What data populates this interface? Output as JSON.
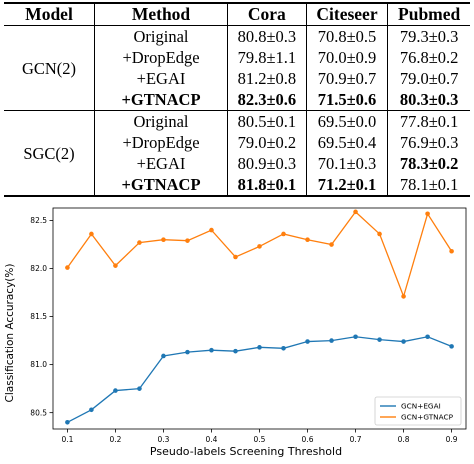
{
  "table": {
    "headers": [
      "Model",
      "Method",
      "Cora",
      "Citeseer",
      "Pubmed"
    ],
    "groups": [
      {
        "model": "GCN(2)",
        "rows": [
          {
            "method": "Original",
            "method_bold": false,
            "cells": [
              {
                "v": "80.8±0.3",
                "b": false
              },
              {
                "v": "70.8±0.5",
                "b": false
              },
              {
                "v": "79.3±0.3",
                "b": false
              }
            ]
          },
          {
            "method": "+DropEdge",
            "method_bold": false,
            "cells": [
              {
                "v": "79.8±1.1",
                "b": false
              },
              {
                "v": "70.0±0.9",
                "b": false
              },
              {
                "v": "76.8±0.2",
                "b": false
              }
            ]
          },
          {
            "method": "+EGAI",
            "method_bold": false,
            "cells": [
              {
                "v": "81.2±0.8",
                "b": false
              },
              {
                "v": "70.9±0.7",
                "b": false
              },
              {
                "v": "79.0±0.7",
                "b": false
              }
            ]
          },
          {
            "method": "+GTNACP",
            "method_bold": true,
            "cells": [
              {
                "v": "82.3±0.6",
                "b": true
              },
              {
                "v": "71.5±0.6",
                "b": true
              },
              {
                "v": "80.3±0.3",
                "b": true
              }
            ]
          }
        ]
      },
      {
        "model": "SGC(2)",
        "rows": [
          {
            "method": "Original",
            "method_bold": false,
            "cells": [
              {
                "v": "80.5±0.1",
                "b": false
              },
              {
                "v": "69.5±0.0",
                "b": false
              },
              {
                "v": "77.8±0.1",
                "b": false
              }
            ]
          },
          {
            "method": "+DropEdge",
            "method_bold": false,
            "cells": [
              {
                "v": "79.0±0.2",
                "b": false
              },
              {
                "v": "69.5±0.4",
                "b": false
              },
              {
                "v": "76.9±0.3",
                "b": false
              }
            ]
          },
          {
            "method": "+EGAI",
            "method_bold": false,
            "cells": [
              {
                "v": "80.9±0.3",
                "b": false
              },
              {
                "v": "70.1±0.3",
                "b": false
              },
              {
                "v": "78.3±0.2",
                "b": true
              }
            ]
          },
          {
            "method": "+GTNACP",
            "method_bold": true,
            "cells": [
              {
                "v": "81.8±0.1",
                "b": true
              },
              {
                "v": "71.2±0.1",
                "b": true
              },
              {
                "v": "78.1±0.1",
                "b": false
              }
            ]
          }
        ]
      }
    ]
  },
  "chart_data": {
    "type": "line",
    "title": "",
    "xlabel": "Pseudo-labels Screening Threshold",
    "ylabel": "Classification Accuracy(%)",
    "x": [
      0.1,
      0.15,
      0.2,
      0.25,
      0.3,
      0.35,
      0.4,
      0.45,
      0.5,
      0.55,
      0.6,
      0.65,
      0.7,
      0.75,
      0.8,
      0.85,
      0.9
    ],
    "xticks": [
      "0.1",
      "0.2",
      "0.3",
      "0.4",
      "0.5",
      "0.6",
      "0.7",
      "0.8",
      "0.9"
    ],
    "yticks": [
      "80.5",
      "81.0",
      "81.5",
      "82.0",
      "82.5"
    ],
    "xlim": [
      0.07,
      0.93
    ],
    "ylim": [
      80.33,
      82.63
    ],
    "grid": false,
    "legend_position": "lower-right",
    "series": [
      {
        "name": "GCN+EGAI",
        "color": "#1f77b4",
        "values": [
          80.4,
          80.53,
          80.73,
          80.75,
          81.09,
          81.13,
          81.15,
          81.14,
          81.18,
          81.17,
          81.24,
          81.25,
          81.29,
          81.26,
          81.24,
          81.29,
          81.19
        ]
      },
      {
        "name": "GCN+GTNACP",
        "color": "#ff7f0e",
        "values": [
          82.01,
          82.36,
          82.03,
          82.27,
          82.3,
          82.29,
          82.4,
          82.12,
          82.23,
          82.36,
          82.3,
          82.25,
          82.59,
          82.36,
          81.71,
          82.57,
          82.18
        ]
      }
    ]
  }
}
